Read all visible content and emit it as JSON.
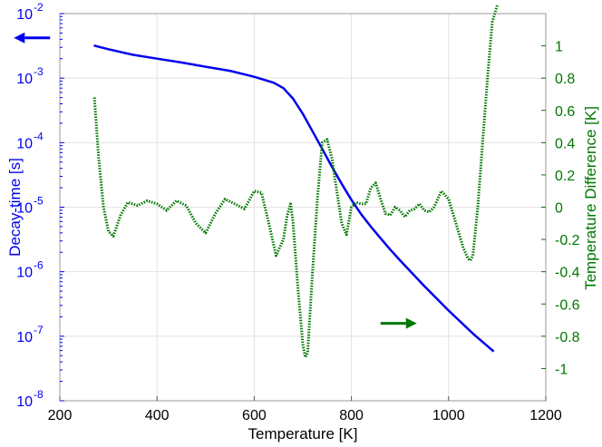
{
  "chart_data": {
    "type": "line",
    "xlabel": "Temperature [K]",
    "ylabel_left": "Decay-time [s]",
    "ylabel_right": "Temperature Difference [K]",
    "x_ticks": [
      200,
      400,
      600,
      800,
      1000,
      1200
    ],
    "xlim": [
      200,
      1200
    ],
    "y_left": {
      "scale": "log",
      "lim": [
        1e-08,
        0.01
      ],
      "ticks": [
        {
          "value": 1e-08,
          "label": "10",
          "exp": "-8"
        },
        {
          "value": 1e-07,
          "label": "10",
          "exp": "-7"
        },
        {
          "value": 1e-06,
          "label": "10",
          "exp": "-6"
        },
        {
          "value": 1e-05,
          "label": "10",
          "exp": "-5"
        },
        {
          "value": 0.0001,
          "label": "10",
          "exp": "-4"
        },
        {
          "value": 0.001,
          "label": "10",
          "exp": "-3"
        },
        {
          "value": 0.01,
          "label": "10",
          "exp": "-2"
        }
      ],
      "color": "#0000ee"
    },
    "y_right": {
      "scale": "linear",
      "lim": [
        -1.2,
        1.2
      ],
      "ticks": [
        -1,
        -0.8,
        -0.6,
        -0.4,
        -0.2,
        0,
        0.2,
        0.4,
        0.6,
        0.8,
        1
      ],
      "tick_labels": [
        "-1",
        "-0.8",
        "-0.6",
        "-0.4",
        "-0.2",
        "0",
        "0.2",
        "0.4",
        "0.6",
        "0.8",
        "1"
      ],
      "color": "#007700"
    },
    "grid": true,
    "series": [
      {
        "axis": "left",
        "style": "solid",
        "color": "#0000ee",
        "x": [
          270,
          300,
          350,
          400,
          450,
          500,
          550,
          600,
          640,
          660,
          680,
          700,
          720,
          740,
          760,
          780,
          800,
          820,
          840,
          860,
          880,
          900,
          950,
          1000,
          1050,
          1093
        ],
        "y": [
          0.0032,
          0.0028,
          0.0023,
          0.002,
          0.00175,
          0.0015,
          0.0013,
          0.00105,
          0.00085,
          0.0007,
          0.00048,
          0.00028,
          0.00015,
          8e-05,
          4.2e-05,
          2.3e-05,
          1.3e-05,
          7.8e-06,
          5e-06,
          3.3e-06,
          2.2e-06,
          1.5e-06,
          6e-07,
          2.5e-07,
          1.1e-07,
          5.8e-08
        ]
      },
      {
        "axis": "right",
        "style": "dotted",
        "color": "#007700",
        "x": [
          271,
          280,
          290,
          300,
          310,
          325,
          340,
          360,
          380,
          400,
          420,
          440,
          460,
          480,
          500,
          520,
          540,
          560,
          580,
          600,
          615,
          630,
          645,
          660,
          668,
          675,
          680,
          690,
          700,
          705,
          710,
          720,
          730,
          740,
          750,
          760,
          770,
          780,
          790,
          800,
          810,
          820,
          830,
          840,
          850,
          860,
          870,
          880,
          890,
          900,
          910,
          920,
          930,
          940,
          950,
          960,
          970,
          985,
          1000,
          1010,
          1020,
          1030,
          1040,
          1045,
          1050,
          1060,
          1070,
          1080,
          1090,
          1100
        ],
        "y": [
          0.68,
          0.3,
          0.0,
          -0.15,
          -0.18,
          -0.05,
          0.03,
          0.01,
          0.04,
          0.02,
          -0.02,
          0.04,
          0.01,
          -0.1,
          -0.16,
          -0.04,
          0.05,
          0.02,
          -0.01,
          0.1,
          0.09,
          -0.1,
          -0.3,
          -0.2,
          -0.05,
          0.02,
          -0.1,
          -0.5,
          -0.85,
          -0.93,
          -0.9,
          -0.4,
          0.05,
          0.4,
          0.42,
          0.3,
          0.1,
          -0.1,
          -0.17,
          0.0,
          0.03,
          0.02,
          0.02,
          0.12,
          0.15,
          0.05,
          -0.04,
          -0.05,
          0.0,
          -0.02,
          -0.06,
          -0.02,
          -0.01,
          0.02,
          -0.02,
          -0.03,
          0.0,
          0.1,
          0.05,
          -0.05,
          -0.15,
          -0.25,
          -0.32,
          -0.33,
          -0.3,
          0.0,
          0.4,
          0.8,
          1.15,
          1.25
        ]
      }
    ],
    "annotations": [
      {
        "type": "arrow",
        "direction": "left",
        "color": "#0000ee",
        "x": 180,
        "y": 0.0042,
        "length": 40
      },
      {
        "type": "arrow",
        "direction": "right",
        "color": "#007700",
        "x": 860,
        "y": -0.72,
        "length": 40
      }
    ]
  }
}
